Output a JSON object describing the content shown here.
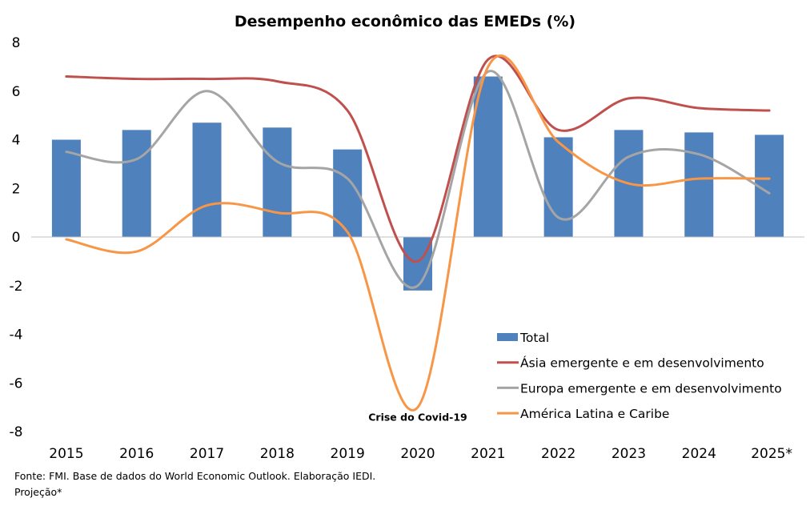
{
  "chart_data": {
    "type": "bar",
    "title": "Desempenho econômico das EMEDs (%)",
    "xlabel": "",
    "ylabel": "",
    "categories": [
      "2015",
      "2016",
      "2017",
      "2018",
      "2019",
      "2020",
      "2021",
      "2022",
      "2023",
      "2024",
      "2025*"
    ],
    "ylim": [
      -8,
      8
    ],
    "yticks": [
      8,
      6,
      4,
      2,
      0,
      -2,
      -4,
      -6,
      -8
    ],
    "ytick_labels": [
      "8",
      "6",
      "4",
      "2",
      "0",
      "-2",
      "-4",
      "-6",
      "-8"
    ],
    "grid": false,
    "legend_position": "bottom-right",
    "series": [
      {
        "name": "Total",
        "type": "bar",
        "color": "#4F81BD",
        "values": [
          4.0,
          4.4,
          4.7,
          4.5,
          3.6,
          -2.2,
          6.6,
          4.1,
          4.4,
          4.3,
          4.2
        ]
      },
      {
        "name": "Ásia emergente e em desenvolvimento",
        "type": "line",
        "smooth": true,
        "color": "#C0504D",
        "values": [
          6.6,
          6.5,
          6.5,
          6.4,
          5.2,
          -1.0,
          7.3,
          4.4,
          5.7,
          5.3,
          5.2
        ]
      },
      {
        "name": "Europa emergente e em desenvolvimento",
        "type": "line",
        "smooth": true,
        "color": "#A5A5A5",
        "values": [
          3.5,
          3.2,
          6.0,
          3.1,
          2.4,
          -2.0,
          6.8,
          0.8,
          3.3,
          3.4,
          1.8
        ]
      },
      {
        "name": "América Latina e Caribe",
        "type": "line",
        "smooth": true,
        "color": "#F79646",
        "values": [
          -0.1,
          -0.6,
          1.3,
          1.0,
          0.2,
          -7.0,
          7.0,
          3.9,
          2.2,
          2.4,
          2.4
        ]
      }
    ],
    "annotations": [
      {
        "text": "Crise do Covid-19",
        "category": "2020",
        "near_value": -7.0
      }
    ]
  },
  "footer": {
    "source": "Fonte: FMI. Base de dados do World Economic Outlook. Elaboração IEDI.",
    "note": "Projeção*"
  }
}
